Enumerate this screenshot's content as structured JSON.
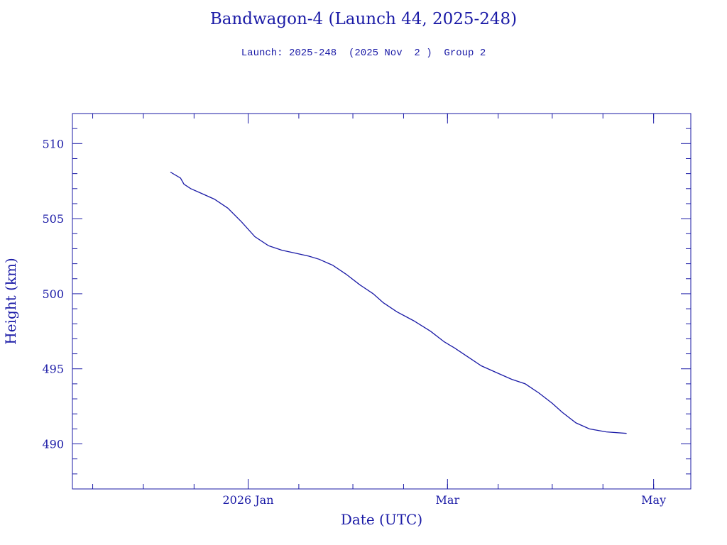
{
  "chart_data": {
    "type": "line",
    "title": "Bandwagon-4 (Launch 44, 2025-248)",
    "subtitle": "Launch: 2025-248  (2025 Nov  2 )  Group 2",
    "xlabel": "Date (UTC)",
    "ylabel": "Height (km)",
    "xlim": [
      "2025-11-10",
      "2026-05-12"
    ],
    "ylim": [
      487,
      512
    ],
    "x_ticks": [
      {
        "date": "2026-01-01",
        "label": "2026 Jan"
      },
      {
        "date": "2026-03-01",
        "label": "Mar"
      },
      {
        "date": "2026-05-01",
        "label": "May"
      }
    ],
    "y_ticks": [
      490,
      495,
      500,
      505,
      510
    ],
    "grid": false,
    "color": "#1a1aa6",
    "series": [
      {
        "x": [
          "2025-12-09",
          "2025-12-12",
          "2025-12-13",
          "2025-12-15",
          "2025-12-18",
          "2025-12-22",
          "2025-12-26",
          "2025-12-30",
          "2026-01-03",
          "2026-01-07",
          "2026-01-11",
          "2026-01-15",
          "2026-01-19",
          "2026-01-22",
          "2026-01-25",
          "2026-01-26",
          "2026-01-30",
          "2026-02-03",
          "2026-02-07",
          "2026-02-10",
          "2026-02-14",
          "2026-02-19",
          "2026-02-24",
          "2026-02-28",
          "2026-03-03",
          "2026-03-07",
          "2026-03-11",
          "2026-03-16",
          "2026-03-20",
          "2026-03-24",
          "2026-03-28",
          "2026-04-01",
          "2026-04-04",
          "2026-04-08",
          "2026-04-12",
          "2026-04-17",
          "2026-04-23"
        ],
        "y": [
          508.1,
          507.7,
          507.3,
          507.0,
          506.7,
          506.3,
          505.7,
          504.8,
          503.8,
          503.2,
          502.9,
          502.7,
          502.5,
          502.3,
          502.0,
          501.9,
          501.3,
          500.6,
          500.0,
          499.4,
          498.8,
          498.2,
          497.5,
          496.8,
          496.4,
          495.8,
          495.2,
          494.7,
          494.3,
          494.0,
          493.4,
          492.7,
          492.1,
          491.4,
          491.0,
          490.8,
          490.7
        ]
      }
    ]
  }
}
